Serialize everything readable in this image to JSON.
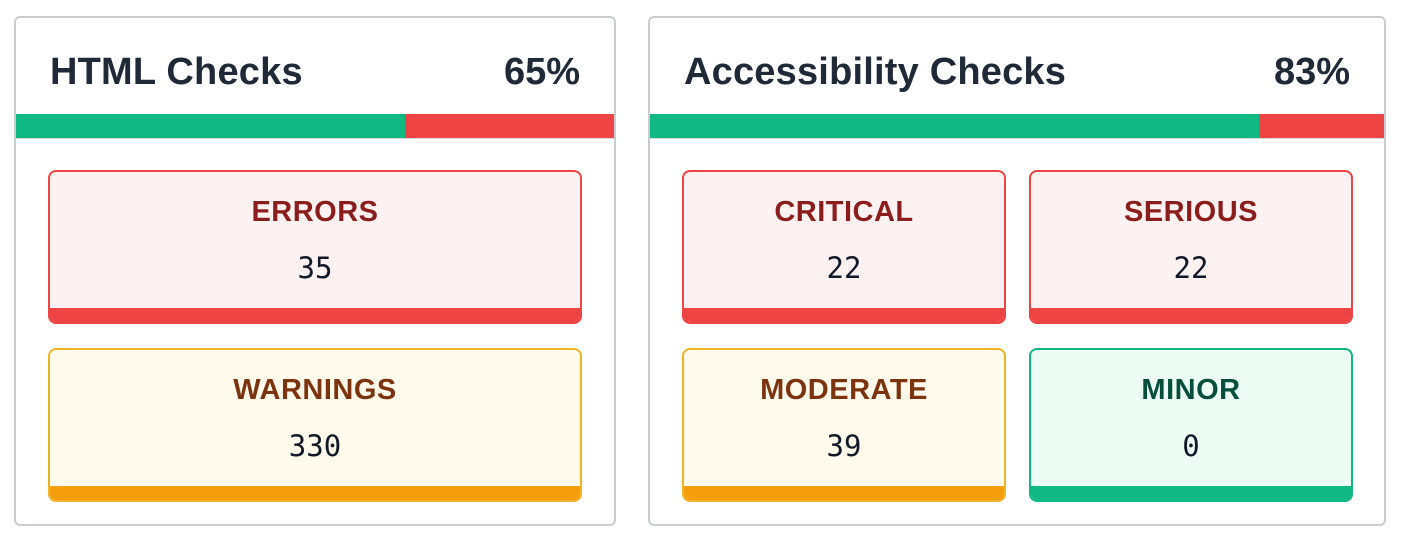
{
  "html_checks": {
    "title": "HTML Checks",
    "score_label": "65%",
    "score_fraction": 0.65,
    "pass_color": "#10b981",
    "fail_color": "#ef4444",
    "tiles": {
      "errors": {
        "label": "ERRORS",
        "value": "35",
        "severity": "red"
      },
      "warnings": {
        "label": "WARNINGS",
        "value": "330",
        "severity": "amber"
      }
    }
  },
  "accessibility_checks": {
    "title": "Accessibility Checks",
    "score_label": "83%",
    "score_fraction": 0.83,
    "pass_color": "#10b981",
    "fail_color": "#ef4444",
    "tiles": {
      "critical": {
        "label": "CRITICAL",
        "value": "22",
        "severity": "red"
      },
      "serious": {
        "label": "SERIOUS",
        "value": "22",
        "severity": "red"
      },
      "moderate": {
        "label": "MODERATE",
        "value": "39",
        "severity": "amber"
      },
      "minor": {
        "label": "MINOR",
        "value": "0",
        "severity": "green"
      }
    }
  },
  "colors": {
    "red": "#ef4444",
    "amber": "#f59e0b",
    "green": "#10b981",
    "text_dark": "#1f2937"
  }
}
